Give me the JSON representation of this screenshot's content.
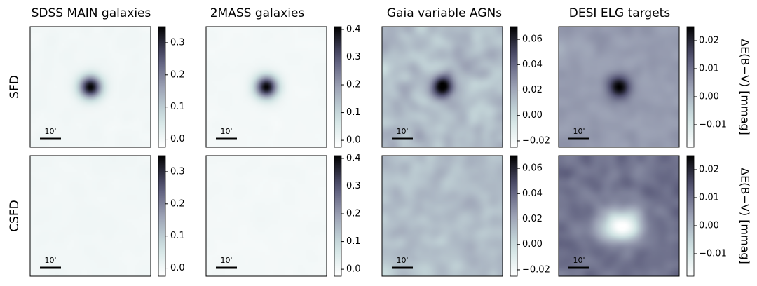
{
  "chart_data": {
    "type": "heatmap",
    "colormap": "bone_r",
    "columns": [
      "SDSS MAIN galaxies",
      "2MASS galaxies",
      "Gaia variable AGNs",
      "DESI ELG targets"
    ],
    "rows": [
      "SFD",
      "CSFD"
    ],
    "colorbar_label": "ΔE(B−V) [mmag]",
    "scale_bar_label": "10'",
    "panels": [
      {
        "row": "SFD",
        "column": "SDSS MAIN galaxies",
        "vmin": -0.025,
        "vmax": 0.35,
        "ticks": [
          0.0,
          0.1,
          0.2,
          0.3
        ],
        "tick_labels": [
          "0.0",
          "0.1",
          "0.2",
          "0.3"
        ],
        "background_level": 0.0,
        "background_spread": 0.006,
        "peak_level": 0.35,
        "peak_width": 0.065,
        "blob_level": 0.0
      },
      {
        "row": "SFD",
        "column": "2MASS galaxies",
        "vmin": -0.025,
        "vmax": 0.41,
        "ticks": [
          0.0,
          0.1,
          0.2,
          0.3,
          0.4
        ],
        "tick_labels": [
          "0.0",
          "0.1",
          "0.2",
          "0.3",
          "0.4"
        ],
        "background_level": 0.0,
        "background_spread": 0.006,
        "peak_level": 0.41,
        "peak_width": 0.065,
        "blob_level": 0.0
      },
      {
        "row": "SFD",
        "column": "Gaia variable AGNs",
        "vmin": -0.025,
        "vmax": 0.07,
        "ticks": [
          -0.02,
          0.0,
          0.02,
          0.04,
          0.06
        ],
        "tick_labels": [
          "−0.02",
          "0.00",
          "0.02",
          "0.04",
          "0.06"
        ],
        "background_level": 0.012,
        "background_spread": 0.012,
        "peak_level": 0.07,
        "peak_width": 0.065,
        "blob_level": 0.0
      },
      {
        "row": "SFD",
        "column": "DESI ELG targets",
        "vmin": -0.018,
        "vmax": 0.025,
        "ticks": [
          -0.01,
          0.0,
          0.01,
          0.02
        ],
        "tick_labels": [
          "−0.01",
          "0.00",
          "0.01",
          "0.02"
        ],
        "background_level": 0.004,
        "background_spread": 0.003,
        "peak_level": 0.025,
        "peak_width": 0.065,
        "blob_level": 0.0
      },
      {
        "row": "CSFD",
        "column": "SDSS MAIN galaxies",
        "vmin": -0.025,
        "vmax": 0.35,
        "ticks": [
          0.0,
          0.1,
          0.2,
          0.3
        ],
        "tick_labels": [
          "0.0",
          "0.1",
          "0.2",
          "0.3"
        ],
        "background_level": 0.0,
        "background_spread": 0.005,
        "peak_level": 0.004,
        "peak_width": 0.07,
        "blob_level": 0.0
      },
      {
        "row": "CSFD",
        "column": "2MASS galaxies",
        "vmin": -0.025,
        "vmax": 0.41,
        "ticks": [
          0.0,
          0.1,
          0.2,
          0.3,
          0.4
        ],
        "tick_labels": [
          "0.0",
          "0.1",
          "0.2",
          "0.3",
          "0.4"
        ],
        "background_level": 0.0,
        "background_spread": 0.005,
        "peak_level": 0.006,
        "peak_width": 0.07,
        "blob_level": 0.0
      },
      {
        "row": "CSFD",
        "column": "Gaia variable AGNs",
        "vmin": -0.025,
        "vmax": 0.07,
        "ticks": [
          -0.02,
          0.0,
          0.02,
          0.04,
          0.06
        ],
        "tick_labels": [
          "−0.02",
          "0.00",
          "0.02",
          "0.04",
          "0.06"
        ],
        "background_level": 0.012,
        "background_spread": 0.012,
        "peak_level": 0.012,
        "peak_width": 0.07,
        "blob_level": 0.0
      },
      {
        "row": "CSFD",
        "column": "DESI ELG targets",
        "vmin": -0.018,
        "vmax": 0.025,
        "ticks": [
          -0.01,
          0.0,
          0.01,
          0.02
        ],
        "tick_labels": [
          "−0.01",
          "0.00",
          "0.01",
          "0.02"
        ],
        "background_level": 0.01,
        "background_spread": 0.003,
        "peak_level": 0.01,
        "peak_width": 0.09,
        "blob_level": -0.028
      }
    ]
  }
}
